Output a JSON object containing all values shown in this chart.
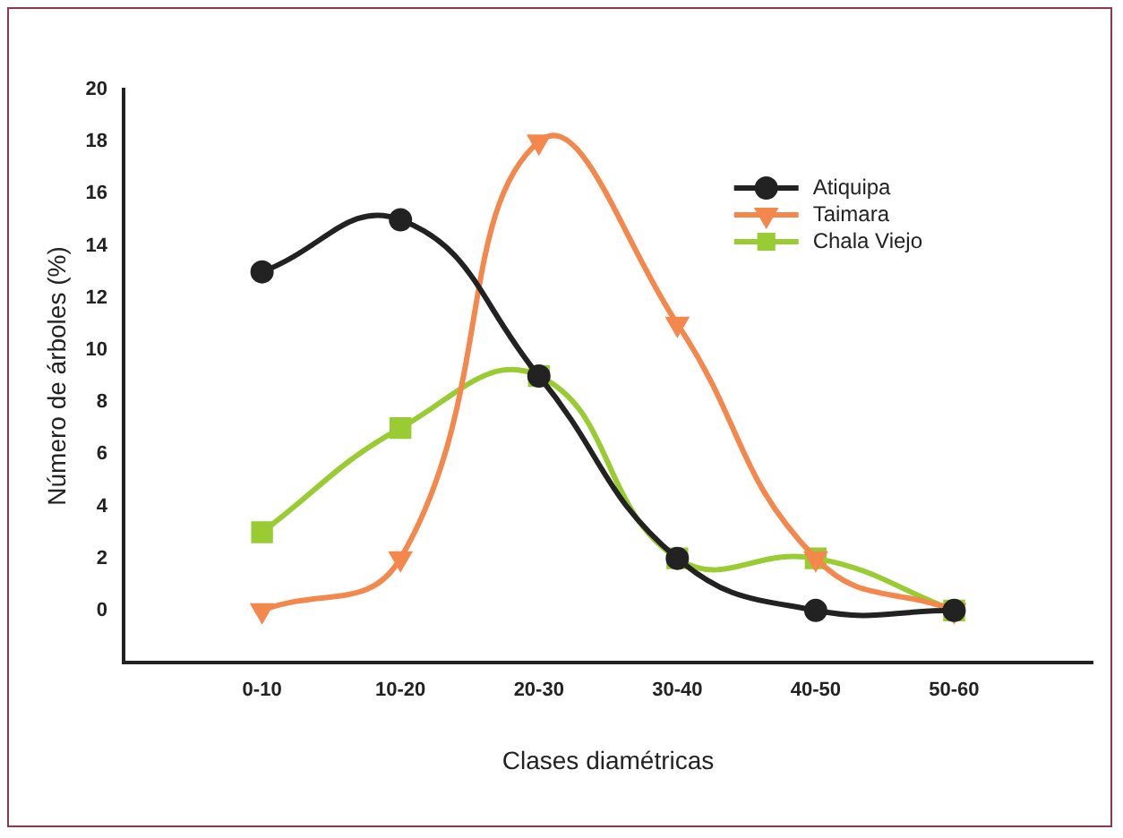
{
  "chart_data": {
    "type": "line",
    "xlabel": "Clases diamétricas",
    "ylabel": "Número de árboles (%)",
    "categories": [
      "0-10",
      "10-20",
      "20-30",
      "30-40",
      "40-50",
      "50-60"
    ],
    "series": [
      {
        "name": "Atiquipa",
        "color": "#222222",
        "marker": "circle",
        "values": [
          13,
          15,
          9,
          2,
          0,
          0
        ]
      },
      {
        "name": "Taimara",
        "color": "#f4874b",
        "marker": "triangle",
        "values": [
          0,
          2,
          18,
          11,
          2,
          0
        ]
      },
      {
        "name": "Chala Viejo",
        "color": "#99cc33",
        "marker": "square",
        "values": [
          3,
          7,
          9,
          2,
          2,
          0
        ]
      }
    ],
    "ylim": [
      -2,
      20
    ],
    "yticks": [
      0,
      2,
      4,
      6,
      8,
      10,
      12,
      14,
      16,
      18,
      20
    ],
    "grid": false,
    "legend": "top right"
  }
}
